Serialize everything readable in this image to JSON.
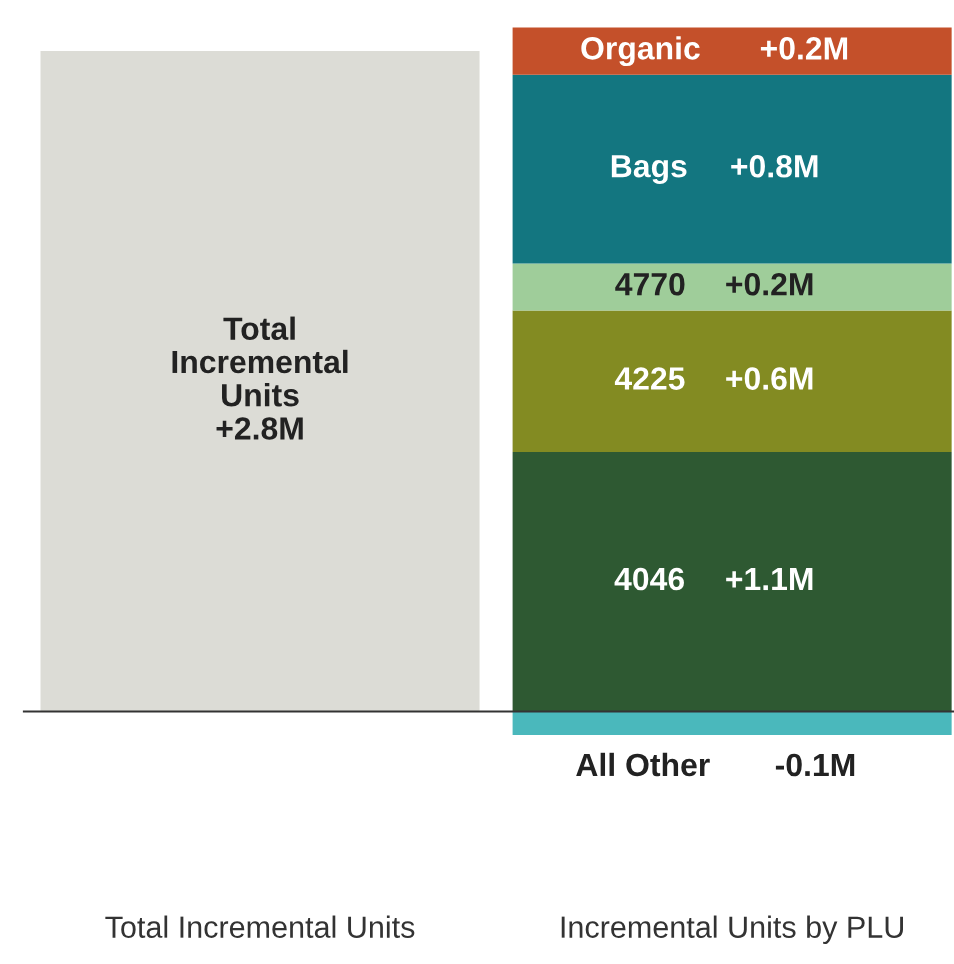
{
  "chart_data": {
    "type": "bar",
    "stacked": true,
    "categories": [
      "Total Incremental Units",
      "Incremental Units by PLU"
    ],
    "series": [
      {
        "color": "#dcdcd6",
        "values": [
          2.8,
          null
        ],
        "value_labels": [
          "Total\nIncremental\nUnits\n+2.8M",
          null
        ]
      },
      {
        "name": "All Other",
        "color": "#4ab8bc",
        "values": [
          null,
          -0.1
        ],
        "value_labels": [
          null,
          "-0.1M"
        ]
      },
      {
        "name": "4046",
        "color": "#2e5932",
        "values": [
          null,
          1.1
        ],
        "value_labels": [
          null,
          "+1.1M"
        ]
      },
      {
        "name": "4225",
        "color": "#838b22",
        "values": [
          null,
          0.6
        ],
        "value_labels": [
          null,
          "+0.6M"
        ]
      },
      {
        "name": "4770",
        "color": "#9fcd9a",
        "values": [
          null,
          0.2
        ],
        "value_labels": [
          null,
          "+0.2M"
        ]
      },
      {
        "name": "Bags",
        "color": "#137680",
        "values": [
          null,
          0.8
        ],
        "value_labels": [
          null,
          "+0.8M"
        ]
      },
      {
        "name": "Organic",
        "color": "#c4502a",
        "values": [
          null,
          0.2
        ],
        "value_labels": [
          null,
          "+0.2M"
        ]
      }
    ]
  }
}
